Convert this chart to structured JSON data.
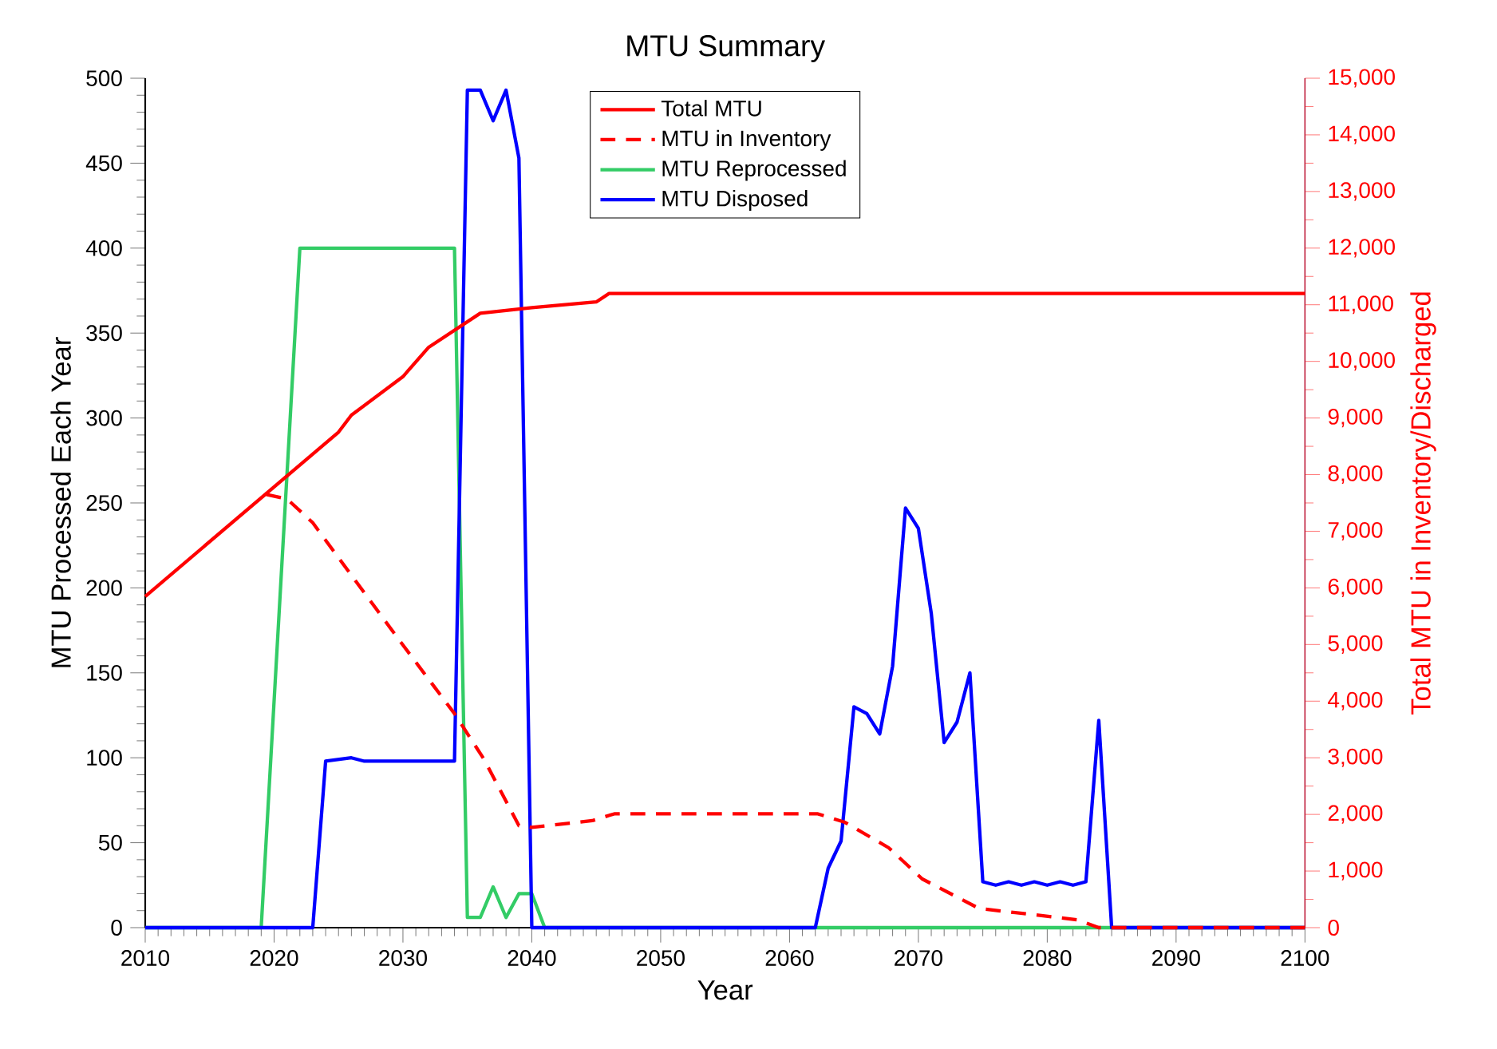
{
  "chart_data": {
    "type": "line",
    "title": "MTU Summary",
    "xlabel": "Year",
    "ylabel": "MTU Processed Each Year",
    "y2label": "Total MTU in Inventory/Discharged",
    "xlim": [
      2010,
      2100
    ],
    "xticks": [
      2010,
      2020,
      2030,
      2040,
      2050,
      2060,
      2070,
      2080,
      2090,
      2100
    ],
    "ylim": [
      0,
      500
    ],
    "yticks": [
      0,
      50,
      100,
      150,
      200,
      250,
      300,
      350,
      400,
      450,
      500
    ],
    "y2lim": [
      0,
      15000
    ],
    "y2ticks": [
      0,
      {
        "value": 1000,
        "label": "1,000"
      },
      {
        "value": 2000,
        "label": "2,000"
      },
      {
        "value": 3000,
        "label": "3,000"
      },
      {
        "value": 4000,
        "label": "4,000"
      },
      {
        "value": 5000,
        "label": "5,000"
      },
      {
        "value": 6000,
        "label": "6,000"
      },
      {
        "value": 7000,
        "label": "7,000"
      },
      {
        "value": 8000,
        "label": "8,000"
      },
      {
        "value": 9000,
        "label": "9,000"
      },
      {
        "value": 10000,
        "label": "10,000"
      },
      {
        "value": 11000,
        "label": "11,000"
      },
      {
        "value": 12000,
        "label": "12,000"
      },
      {
        "value": 13000,
        "label": "13,000"
      },
      {
        "value": 14000,
        "label": "14,000"
      },
      {
        "value": 15000,
        "label": "15,000"
      }
    ],
    "legend": "top",
    "series": [
      {
        "name": "Total MTU",
        "color": "#ff0000",
        "axis": "y2",
        "line_style": "solid",
        "x": [
          2010,
          2025,
          2026,
          2030,
          2032,
          2034,
          2036,
          2040,
          2045,
          2046,
          2100
        ],
        "values": [
          5850,
          8750,
          9050,
          9730,
          10250,
          10550,
          10850,
          10950,
          11050,
          11200,
          11200
        ]
      },
      {
        "name": "MTU in Inventory",
        "color": "#ff0000",
        "axis": "y2",
        "line_style": "dashed",
        "x": [
          2019.4,
          2021,
          2022.3,
          2023,
          2030,
          2034,
          2036.3,
          2039,
          2040,
          2044.7,
          2046.4,
          2062.2,
          2064.3,
          2067.7,
          2070.3,
          2074.7,
          2082.3,
          2084,
          2100
        ],
        "values": [
          7650,
          7570,
          7300,
          7150,
          4990,
          3780,
          2970,
          1800,
          1770,
          1890,
          2010,
          2010,
          1860,
          1410,
          860,
          340,
          140,
          0,
          0
        ]
      },
      {
        "name": "MTU Reprocessed",
        "color": "#33cc66",
        "axis": "y",
        "line_style": "solid",
        "x": [
          2010,
          2019,
          2022,
          2034,
          2035,
          2036,
          2037,
          2038,
          2039,
          2040,
          2041,
          2100
        ],
        "values": [
          0,
          0,
          400,
          400,
          6,
          6,
          24,
          6,
          20,
          20,
          0,
          0
        ]
      },
      {
        "name": "MTU Disposed",
        "color": "#0000ff",
        "axis": "y",
        "line_style": "solid",
        "x": [
          2010,
          2023,
          2024,
          2026,
          2027,
          2034,
          2035,
          2036,
          2037,
          2038,
          2039,
          2040,
          2062,
          2063,
          2064,
          2065,
          2066,
          2067,
          2068,
          2069,
          2070,
          2071,
          2072,
          2073,
          2074,
          2075,
          2076,
          2077,
          2078,
          2079,
          2080,
          2081,
          2082,
          2083,
          2084,
          2085,
          2100
        ],
        "values": [
          0,
          0,
          98,
          100,
          98,
          98,
          493,
          493,
          475,
          493,
          453,
          0,
          0,
          35,
          51,
          130,
          126,
          114,
          154,
          247,
          235,
          185,
          109,
          121,
          150,
          27,
          25,
          27,
          25,
          27,
          25,
          27,
          25,
          27,
          122,
          0,
          0
        ]
      }
    ]
  }
}
